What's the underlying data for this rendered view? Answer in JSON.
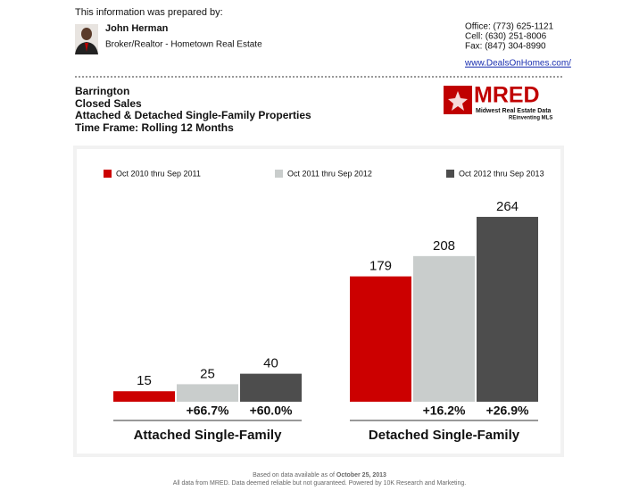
{
  "header": {
    "intro": "This information was prepared by:",
    "agent_name": "John Herman",
    "agent_title": "Broker/Realtor - Hometown Real Estate",
    "contact": [
      "Office: (773) 625-1121",
      "Cell: (630) 251-8006",
      "Fax: (847) 304-8990"
    ],
    "website": "www.DealsOnHomes.com/"
  },
  "report": {
    "lines": [
      "Barrington",
      "Closed Sales",
      "Attached & Detached Single-Family Properties",
      "Time Frame: Rolling 12 Months"
    ]
  },
  "logo": {
    "name": "MRED",
    "subtitle": "Midwest Real Estate Data",
    "tagline": "REinventing MLS"
  },
  "chart_data": {
    "type": "bar",
    "categories": [
      "Attached Single-Family",
      "Detached Single-Family"
    ],
    "series": [
      {
        "name": "Oct 2010 thru Sep 2011",
        "color": "#cc0000",
        "values": [
          15,
          179
        ]
      },
      {
        "name": "Oct 2011 thru Sep 2012",
        "color": "#c9cdcc",
        "values": [
          25,
          208
        ],
        "change_labels": [
          "+66.7%",
          "+16.2%"
        ]
      },
      {
        "name": "Oct 2012 thru Sep 2013",
        "color": "#4d4d4d",
        "values": [
          40,
          264
        ],
        "change_labels": [
          "+60.0%",
          "+26.9%"
        ]
      }
    ],
    "ylim": [
      0,
      320
    ],
    "grid": false,
    "legend": "top"
  },
  "footer": {
    "prefix": "Based on data available as of",
    "date": "October 25, 2013",
    "note": "All data from MRED. Data deemed reliable but not guaranteed. Powered by 10K Research and Marketing."
  }
}
